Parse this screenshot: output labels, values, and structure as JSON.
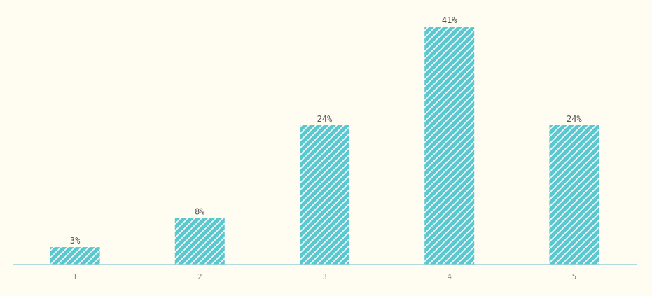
{
  "colors": {
    "background": "#fffdf2",
    "bar": "#5bc8cf",
    "hatch": "#ffffff",
    "axis": "#9ccfd6",
    "value_text": "#555555",
    "tick_text": "#8a8a8a"
  },
  "chart_data": {
    "type": "bar",
    "categories": [
      "1",
      "2",
      "3",
      "4",
      "5"
    ],
    "values": [
      3,
      8,
      24,
      41,
      24
    ],
    "value_labels": [
      "3%",
      "8%",
      "24%",
      "41%",
      "24%"
    ],
    "unit": "%",
    "title": "",
    "xlabel": "",
    "ylabel": "",
    "ylim": [
      0,
      41
    ],
    "grid": false,
    "legend": "none",
    "pattern": "diagonal-hatch"
  }
}
